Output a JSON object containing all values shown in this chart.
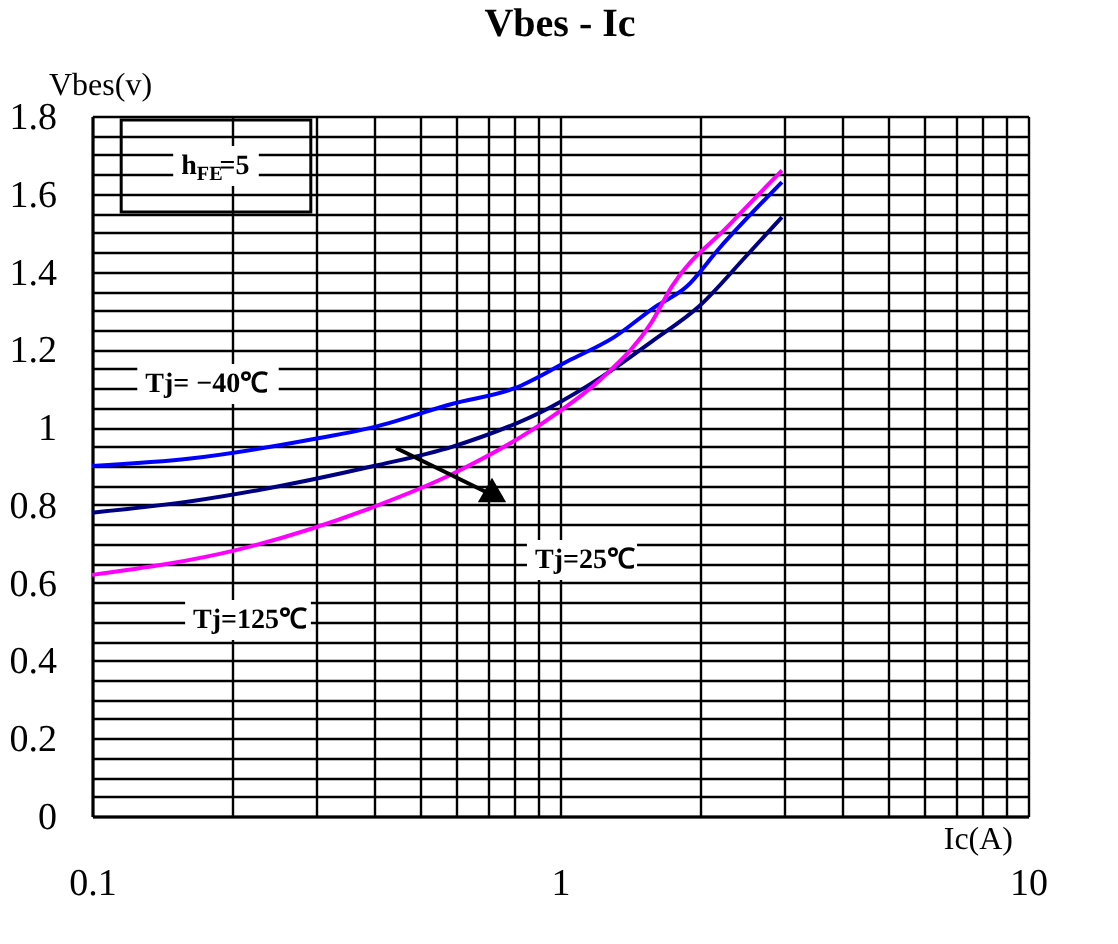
{
  "chart_data": {
    "type": "line",
    "title": "Vbes - Ic",
    "xlabel": "Ic(A)",
    "ylabel": "Vbes(v)",
    "log": "x",
    "grid": true,
    "marker": "none",
    "line_style": "solid",
    "xlim": [
      0.1,
      10
    ],
    "xticks": [
      0.1,
      {
        "value": 0.2,
        "label": null
      },
      {
        "value": 0.3,
        "label": null
      },
      {
        "value": 0.4,
        "label": null
      },
      {
        "value": 0.5,
        "label": null
      },
      {
        "value": 0.6,
        "label": null
      },
      {
        "value": 0.7,
        "label": null
      },
      {
        "value": 0.8,
        "label": null
      },
      {
        "value": 0.9,
        "label": null
      },
      1,
      {
        "value": 2,
        "label": null
      },
      {
        "value": 3,
        "label": null
      },
      {
        "value": 4,
        "label": null
      },
      {
        "value": 5,
        "label": null
      },
      {
        "value": 6,
        "label": null
      },
      {
        "value": 7,
        "label": null
      },
      {
        "value": 8,
        "label": null
      },
      {
        "value": 9,
        "label": null
      },
      10
    ],
    "ylim": [
      0,
      1.8
    ],
    "yticks": [
      0,
      {
        "value": 0.05,
        "label": null
      },
      {
        "value": 0.1,
        "label": null
      },
      {
        "value": 0.15,
        "label": null
      },
      0.2,
      {
        "value": 0.25,
        "label": null
      },
      {
        "value": 0.3,
        "label": null
      },
      {
        "value": 0.35,
        "label": null
      },
      0.4,
      {
        "value": 0.45,
        "label": null
      },
      {
        "value": 0.5,
        "label": null
      },
      {
        "value": 0.55,
        "label": null
      },
      0.6,
      {
        "value": 0.65,
        "label": null
      },
      {
        "value": 0.7,
        "label": null
      },
      {
        "value": 0.75,
        "label": null
      },
      0.8,
      {
        "value": 0.85,
        "label": null
      },
      {
        "value": 0.9,
        "label": null
      },
      {
        "value": 0.95,
        "label": null
      },
      1,
      {
        "value": 1.05,
        "label": null
      },
      {
        "value": 1.1,
        "label": null
      },
      {
        "value": 1.15,
        "label": null
      },
      1.2,
      {
        "value": 1.25,
        "label": null
      },
      {
        "value": 1.3,
        "label": null
      },
      {
        "value": 1.35,
        "label": null
      },
      1.4,
      {
        "value": 1.45,
        "label": null
      },
      {
        "value": 1.5,
        "label": null
      },
      {
        "value": 1.55,
        "label": null
      },
      1.6,
      {
        "value": 1.65,
        "label": null
      },
      {
        "value": 1.7,
        "label": null
      },
      {
        "value": 1.75,
        "label": null
      },
      1.8
    ],
    "series": [
      {
        "color": "#0000ff",
        "x": [
          0.1,
          0.164,
          0.3,
          0.4,
          0.59,
          0.8,
          1.04,
          1.3,
          1.6,
          1.86,
          2.19,
          2.98
        ],
        "values": [
          0.9,
          0.92,
          0.97,
          1.0,
          1.06,
          1.1,
          1.17,
          1.23,
          1.31,
          1.36,
          1.46,
          1.63
        ]
      },
      {
        "color": "#000080",
        "x": [
          0.1,
          0.164,
          0.4,
          0.59,
          0.95,
          1.23,
          1.57,
          1.98,
          2.5,
          2.98
        ],
        "values": [
          0.78,
          0.81,
          0.9,
          0.95,
          1.05,
          1.13,
          1.22,
          1.31,
          1.44,
          1.54
        ]
      },
      {
        "color": "#ff00ff",
        "x": [
          0.1,
          0.205,
          0.39,
          0.59,
          0.97,
          1.24,
          1.57,
          1.73,
          2.3,
          2.98
        ],
        "values": [
          0.62,
          0.685,
          0.79,
          0.88,
          1.03,
          1.13,
          1.27,
          1.36,
          1.52,
          1.66
        ]
      }
    ],
    "annotations": [
      "h$_{FE}$=5",
      "Tj= −40℃",
      "Tj=125℃",
      "Tj=25℃"
    ]
  }
}
